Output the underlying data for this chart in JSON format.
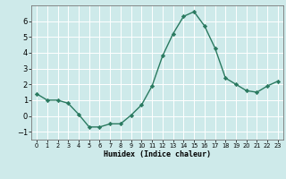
{
  "x": [
    0,
    1,
    2,
    3,
    4,
    5,
    6,
    7,
    8,
    9,
    10,
    11,
    12,
    13,
    14,
    15,
    16,
    17,
    18,
    19,
    20,
    21,
    22,
    23
  ],
  "y": [
    1.4,
    1.0,
    1.0,
    0.8,
    0.1,
    -0.7,
    -0.7,
    -0.5,
    -0.5,
    0.05,
    0.7,
    1.9,
    3.8,
    5.2,
    6.3,
    6.6,
    5.7,
    4.3,
    2.4,
    2.0,
    1.6,
    1.5,
    1.9,
    2.2
  ],
  "xlabel": "Humidex (Indice chaleur)",
  "ylim": [
    -1.5,
    7.0
  ],
  "xlim": [
    -0.5,
    23.5
  ],
  "yticks": [
    -1,
    0,
    1,
    2,
    3,
    4,
    5,
    6
  ],
  "xtick_labels": [
    "0",
    "1",
    "2",
    "3",
    "4",
    "5",
    "6",
    "7",
    "8",
    "9",
    "10",
    "11",
    "12",
    "13",
    "14",
    "15",
    "16",
    "17",
    "18",
    "19",
    "20",
    "21",
    "22",
    "23"
  ],
  "line_color": "#2a7a60",
  "marker": "D",
  "marker_size": 2.2,
  "bg_color": "#ceeaea",
  "grid_color": "#ffffff",
  "line_width": 1.0
}
